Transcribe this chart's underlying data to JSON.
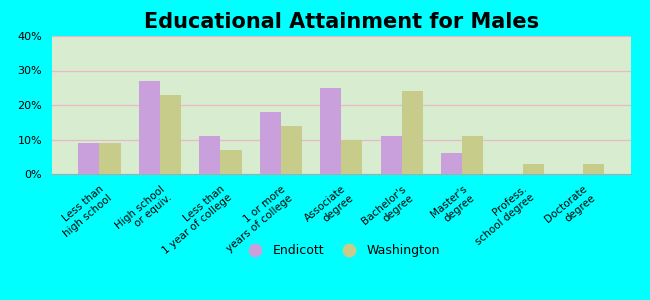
{
  "title": "Educational Attainment for Males",
  "categories": [
    "Less than\nhigh school",
    "High school\nor equiv.",
    "Less than\n1 year of college",
    "1 or more\nyears of college",
    "Associate\ndegree",
    "Bachelor's\ndegree",
    "Master's\ndegree",
    "Profess.\nschool degree",
    "Doctorate\ndegree"
  ],
  "endicott": [
    9,
    27,
    11,
    18,
    25,
    11,
    6,
    0,
    0
  ],
  "washington": [
    9,
    23,
    7,
    14,
    10,
    24,
    11,
    3,
    3
  ],
  "endicott_color": "#c9a0dc",
  "washington_color": "#c8cc8a",
  "background_color": "#00ffff",
  "plot_bg": "#d8ecd0",
  "grid_color": "#e8b8c8",
  "ylim": [
    0,
    40
  ],
  "yticks": [
    0,
    10,
    20,
    30,
    40
  ],
  "ytick_labels": [
    "0%",
    "10%",
    "20%",
    "30%",
    "40%"
  ],
  "bar_width": 0.35,
  "legend_labels": [
    "Endicott",
    "Washington"
  ],
  "title_fontsize": 15,
  "label_fontsize": 7.5
}
